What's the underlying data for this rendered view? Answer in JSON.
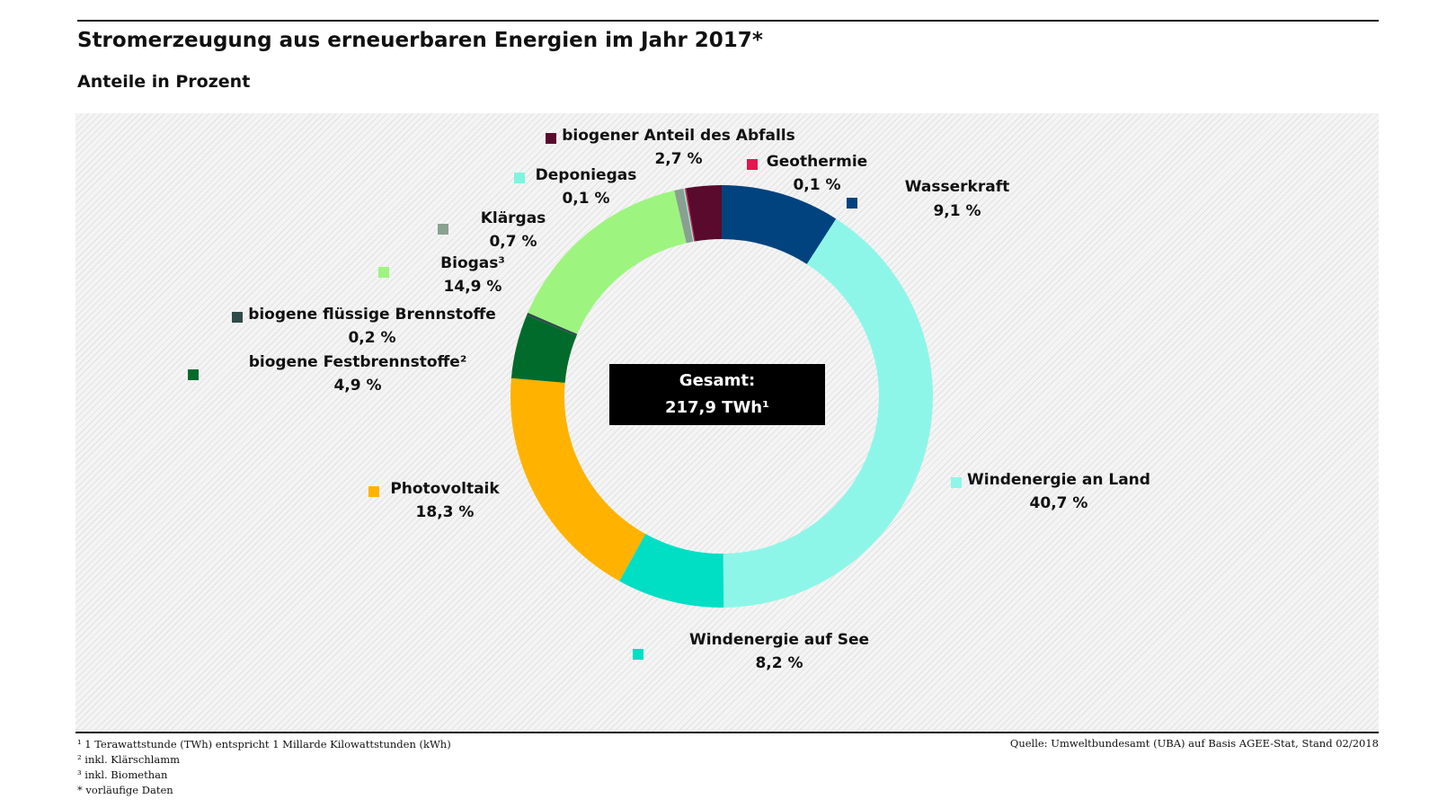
{
  "header": {
    "title": "Stromerzeugung aus erneuerbaren Energien im Jahr 2017*",
    "subtitle": "Anteile in Prozent"
  },
  "center_box": {
    "line1": "Gesamt:",
    "line2": "217,9 TWh¹"
  },
  "chart_data": {
    "type": "pie",
    "variant": "donut",
    "unit": "%",
    "categories": [
      "Wasserkraft",
      "Windenergie an Land",
      "Windenergie auf See",
      "Photovoltaik",
      "biogene Festbrennstoffe²",
      "biogene flüssige Brennstoffe",
      "Biogas³",
      "Klärgas",
      "Deponiegas",
      "biogener Anteil des Abfalls",
      "Geothermie"
    ],
    "values": [
      9.1,
      40.7,
      8.2,
      18.3,
      4.9,
      0.2,
      14.9,
      0.7,
      0.1,
      2.7,
      0.1
    ],
    "value_labels": [
      "9,1 %",
      "40,7 %",
      "8,2 %",
      "18,3 %",
      "4,9 %",
      "0,2 %",
      "14,9 %",
      "0,7 %",
      "0,1 %",
      "2,7 %",
      "0,1 %"
    ],
    "colors": [
      "#00437f",
      "#8ef6e8",
      "#00dfc4",
      "#ffb300",
      "#006b2b",
      "#2e4a4a",
      "#9df57f",
      "#8aa091",
      "#7df5e0",
      "#5a0a2d",
      "#e4174f"
    ],
    "legend_placement": "labels around the ring"
  },
  "footnotes": [
    "¹ 1 Terawattstunde (TWh) entspricht 1 Millarde Kilowattstunden (kWh)",
    "² inkl. Klärschlamm",
    "³ inkl. Biomethan",
    "* vorläufige Daten"
  ],
  "source": "Quelle: Umweltbundesamt (UBA) auf Basis AGEE-Stat, Stand 02/2018"
}
